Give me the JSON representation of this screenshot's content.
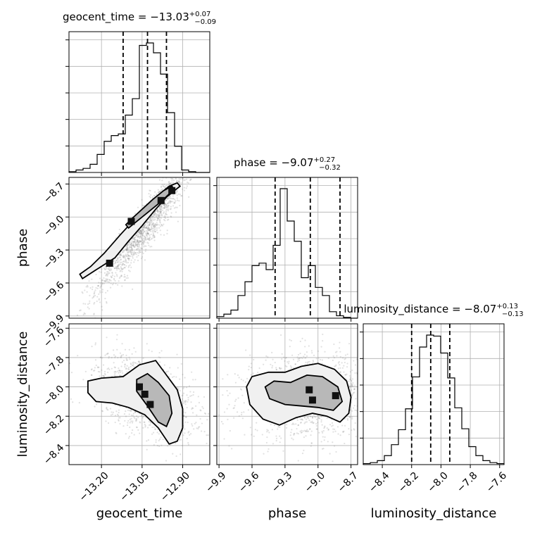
{
  "chart_data": {
    "type": "corner",
    "grid": true,
    "parameters": [
      {
        "name": "geocent_time",
        "title": {
          "prefix": "geocent_time = ",
          "median": "−13.03",
          "plus": "+0.07",
          "minus": "−0.09"
        },
        "range": [
          -13.32,
          -12.8
        ],
        "ticks": [
          -13.2,
          -13.05,
          -12.9
        ],
        "tick_labels": [
          "−13.20",
          "−13.05",
          "−12.90"
        ],
        "quantiles": [
          -13.12,
          -13.03,
          -12.96
        ]
      },
      {
        "name": "phase",
        "title": {
          "prefix": "phase = ",
          "median": "−9.07",
          "plus": "+0.27",
          "minus": "−0.32"
        },
        "range": [
          -9.92,
          -8.64
        ],
        "ticks": [
          -9.9,
          -9.6,
          -9.3,
          -9.0,
          -8.7
        ],
        "tick_labels": [
          "−9.9",
          "−9.6",
          "−9.3",
          "−9.0",
          "−8.7"
        ],
        "quantiles": [
          -9.39,
          -9.07,
          -8.8
        ]
      },
      {
        "name": "luminosity_distance",
        "title": {
          "prefix": "luminosity_distance = ",
          "median": "−8.07",
          "plus": "+0.13",
          "minus": "−0.13"
        },
        "range": [
          -8.53,
          -7.57
        ],
        "ticks": [
          -8.4,
          -8.2,
          -8.0,
          -7.8,
          -7.6
        ],
        "tick_labels": [
          "−8.4",
          "−8.2",
          "−8.0",
          "−7.8",
          "−7.6"
        ],
        "quantiles": [
          -8.2,
          -8.07,
          -7.94
        ]
      }
    ],
    "histograms": {
      "geocent_time": [
        1,
        3,
        5,
        10,
        22,
        38,
        45,
        47,
        70,
        90,
        155,
        158,
        146,
        120,
        73,
        32,
        3,
        1,
        0,
        0
      ],
      "phase": [
        2,
        5,
        10,
        28,
        45,
        65,
        68,
        60,
        90,
        160,
        120,
        95,
        50,
        65,
        38,
        28,
        8,
        3,
        1,
        0
      ],
      "luminosity_distance": [
        1,
        2,
        4,
        9,
        20,
        35,
        56,
        88,
        118,
        130,
        129,
        112,
        87,
        57,
        36,
        18,
        9,
        4,
        2,
        1
      ]
    },
    "pairs": [
      {
        "x": "geocent_time",
        "y": "phase",
        "rho": 0.93,
        "mean": [
          -13.04,
          -9.09
        ],
        "sd": [
          0.09,
          0.3
        ],
        "outer_contour": [
          [
            -13.27,
            -9.56
          ],
          [
            -13.22,
            -9.48
          ],
          [
            -13.15,
            -9.37
          ],
          [
            -13.1,
            -9.22
          ],
          [
            -13.05,
            -9.08
          ],
          [
            -13.0,
            -8.93
          ],
          [
            -12.96,
            -8.82
          ],
          [
            -12.93,
            -8.76
          ],
          [
            -12.91,
            -8.72
          ],
          [
            -12.92,
            -8.69
          ],
          [
            -12.95,
            -8.72
          ],
          [
            -12.99,
            -8.8
          ],
          [
            -13.03,
            -8.9
          ],
          [
            -13.07,
            -9.0
          ],
          [
            -13.13,
            -9.16
          ],
          [
            -13.19,
            -9.33
          ],
          [
            -13.24,
            -9.45
          ],
          [
            -13.28,
            -9.52
          ]
        ],
        "inner_contour": [
          [
            -13.1,
            -9.1
          ],
          [
            -13.06,
            -9.02
          ],
          [
            -13.02,
            -8.94
          ],
          [
            -12.98,
            -8.86
          ],
          [
            -12.95,
            -8.79
          ],
          [
            -12.93,
            -8.75
          ],
          [
            -12.94,
            -8.72
          ],
          [
            -12.97,
            -8.76
          ],
          [
            -13.01,
            -8.84
          ],
          [
            -13.05,
            -8.93
          ],
          [
            -13.09,
            -9.02
          ],
          [
            -13.11,
            -9.07
          ]
        ],
        "dense_cells": [
          [
            -13.09,
            -9.04
          ],
          [
            -12.94,
            -8.76
          ],
          [
            -12.98,
            -8.85
          ],
          [
            -13.17,
            -9.42
          ]
        ]
      },
      {
        "x": "geocent_time",
        "y": "luminosity_distance",
        "rho": -0.45,
        "mean": [
          -13.04,
          -8.06
        ],
        "sd": [
          0.09,
          0.14
        ],
        "outer_contour": [
          [
            -13.25,
            -7.96
          ],
          [
            -13.2,
            -7.94
          ],
          [
            -13.12,
            -7.93
          ],
          [
            -13.06,
            -7.85
          ],
          [
            -13.0,
            -7.82
          ],
          [
            -12.96,
            -7.92
          ],
          [
            -12.92,
            -8.02
          ],
          [
            -12.9,
            -8.15
          ],
          [
            -12.9,
            -8.28
          ],
          [
            -12.92,
            -8.37
          ],
          [
            -12.95,
            -8.39
          ],
          [
            -12.99,
            -8.28
          ],
          [
            -13.04,
            -8.19
          ],
          [
            -13.1,
            -8.14
          ],
          [
            -13.16,
            -8.11
          ],
          [
            -13.22,
            -8.1
          ],
          [
            -13.25,
            -8.04
          ]
        ],
        "inner_contour": [
          [
            -13.07,
            -7.95
          ],
          [
            -13.03,
            -7.91
          ],
          [
            -12.99,
            -7.97
          ],
          [
            -12.95,
            -8.06
          ],
          [
            -12.94,
            -8.18
          ],
          [
            -12.96,
            -8.27
          ],
          [
            -12.99,
            -8.24
          ],
          [
            -13.03,
            -8.13
          ],
          [
            -13.07,
            -8.03
          ]
        ],
        "dense_cells": [
          [
            -13.04,
            -8.05
          ],
          [
            -13.02,
            -8.12
          ],
          [
            -13.06,
            -8.0
          ]
        ]
      },
      {
        "x": "phase",
        "y": "luminosity_distance",
        "rho": 0.05,
        "mean": [
          -9.07,
          -8.06
        ],
        "sd": [
          0.3,
          0.14
        ],
        "outer_contour": [
          [
            -9.65,
            -8.0
          ],
          [
            -9.6,
            -7.93
          ],
          [
            -9.45,
            -7.9
          ],
          [
            -9.3,
            -7.9
          ],
          [
            -9.15,
            -7.86
          ],
          [
            -9.0,
            -7.84
          ],
          [
            -8.85,
            -7.88
          ],
          [
            -8.74,
            -7.96
          ],
          [
            -8.7,
            -8.07
          ],
          [
            -8.72,
            -8.18
          ],
          [
            -8.8,
            -8.24
          ],
          [
            -8.92,
            -8.2
          ],
          [
            -9.05,
            -8.18
          ],
          [
            -9.2,
            -8.21
          ],
          [
            -9.35,
            -8.26
          ],
          [
            -9.5,
            -8.22
          ],
          [
            -9.62,
            -8.12
          ]
        ],
        "inner_contour": [
          [
            -9.48,
            -8.0
          ],
          [
            -9.4,
            -7.96
          ],
          [
            -9.25,
            -7.97
          ],
          [
            -9.1,
            -7.92
          ],
          [
            -8.96,
            -7.93
          ],
          [
            -8.82,
            -8.0
          ],
          [
            -8.78,
            -8.1
          ],
          [
            -8.86,
            -8.16
          ],
          [
            -9.0,
            -8.14
          ],
          [
            -9.15,
            -8.13
          ],
          [
            -9.3,
            -8.12
          ],
          [
            -9.44,
            -8.08
          ]
        ],
        "dense_cells": [
          [
            -9.08,
            -8.02
          ],
          [
            -9.05,
            -8.09
          ],
          [
            -8.84,
            -8.06
          ]
        ]
      }
    ],
    "axis_labels": {
      "x": [
        "geocent_time",
        "phase",
        "luminosity_distance"
      ],
      "y": [
        "phase",
        "luminosity_distance"
      ]
    }
  }
}
